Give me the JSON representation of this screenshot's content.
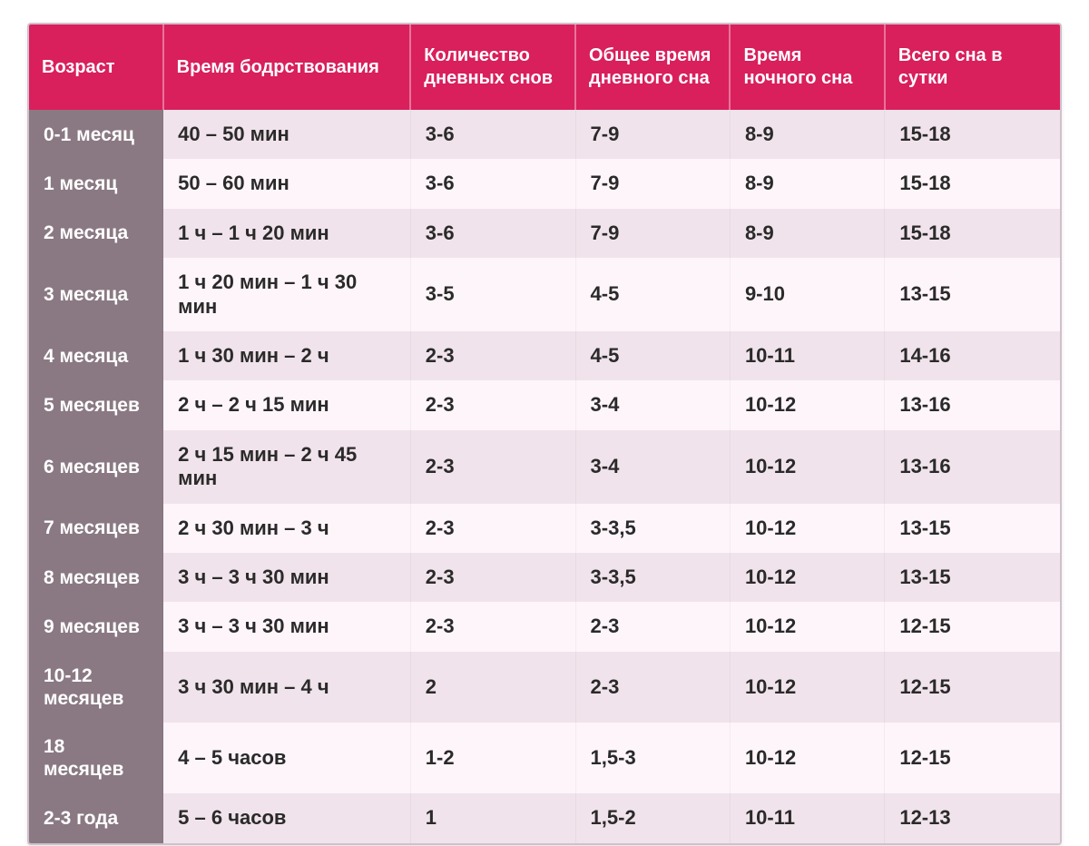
{
  "table": {
    "header_bg": "#d91f5c",
    "age_col_bg": "#8a7983",
    "row_odd_bg": "#f1e3eb",
    "row_even_bg": "#fef5fa",
    "header_fontsize": 20,
    "cell_fontsize": 22,
    "columns": [
      "Возраст",
      "Время бодрствования",
      "Количество дневных снов",
      "Общее время дневного сна",
      "Время ночного сна",
      "Всего сна в сутки"
    ],
    "rows": [
      {
        "age": "0-1 месяц",
        "wake": "40 – 50 мин",
        "naps": "3-6",
        "day": "7-9",
        "night": "8-9",
        "total": "15-18"
      },
      {
        "age": "1 месяц",
        "wake": "50 – 60 мин",
        "naps": "3-6",
        "day": "7-9",
        "night": "8-9",
        "total": "15-18"
      },
      {
        "age": "2 месяца",
        "wake": "1 ч – 1 ч 20 мин",
        "naps": "3-6",
        "day": "7-9",
        "night": "8-9",
        "total": "15-18"
      },
      {
        "age": "3 месяца",
        "wake": "1 ч 20 мин – 1 ч 30 мин",
        "naps": "3-5",
        "day": "4-5",
        "night": "9-10",
        "total": "13-15"
      },
      {
        "age": "4 месяца",
        "wake": "1 ч 30 мин – 2 ч",
        "naps": "2-3",
        "day": "4-5",
        "night": "10-11",
        "total": "14-16"
      },
      {
        "age": "5 месяцев",
        "wake": "2 ч – 2 ч 15 мин",
        "naps": "2-3",
        "day": "3-4",
        "night": "10-12",
        "total": "13-16"
      },
      {
        "age": "6 месяцев",
        "wake": "2 ч 15 мин – 2 ч 45 мин",
        "naps": "2-3",
        "day": "3-4",
        "night": "10-12",
        "total": "13-16"
      },
      {
        "age": "7 месяцев",
        "wake": "2 ч 30 мин – 3 ч",
        "naps": "2-3",
        "day": "3-3,5",
        "night": "10-12",
        "total": "13-15"
      },
      {
        "age": "8 месяцев",
        "wake": "3 ч – 3 ч 30 мин",
        "naps": "2-3",
        "day": "3-3,5",
        "night": "10-12",
        "total": "13-15"
      },
      {
        "age": "9 месяцев",
        "wake": "3 ч – 3 ч 30 мин",
        "naps": "2-3",
        "day": "2-3",
        "night": "10-12",
        "total": "12-15"
      },
      {
        "age": "10-12 месяцев",
        "wake": "3 ч 30 мин – 4 ч",
        "naps": "2",
        "day": "2-3",
        "night": "10-12",
        "total": "12-15"
      },
      {
        "age": "18 месяцев",
        "wake": "4 – 5 часов",
        "naps": "1-2",
        "day": "1,5-3",
        "night": "10-12",
        "total": "12-15"
      },
      {
        "age": "2-3 года",
        "wake": "5 – 6 часов",
        "naps": "1",
        "day": "1,5-2",
        "night": "10-11",
        "total": "12-13"
      }
    ]
  }
}
